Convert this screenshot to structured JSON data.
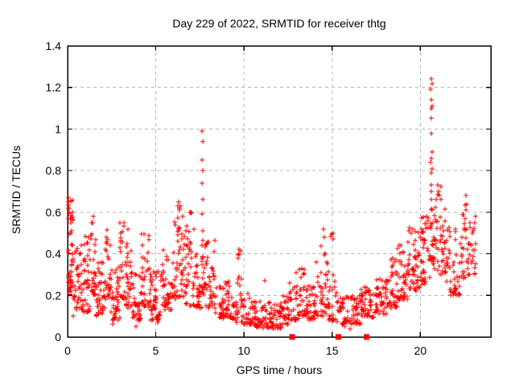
{
  "title": "Day 229 of 2022, SRMTID for receiver thtg",
  "colors": {
    "data": "#ff0000",
    "grid": "#b5b5b5",
    "border": "#000000",
    "background": "#ffffff",
    "text": "#000000"
  },
  "chart_data": {
    "type": "scatter",
    "title": "Day 229 of 2022, SRMTID for receiver thtg",
    "xlabel": "GPS time / hours",
    "ylabel": "SRMTID / TECUs",
    "xlim": [
      0,
      24
    ],
    "ylim": [
      0,
      1.4
    ],
    "x_tick_values": [
      0,
      5,
      10,
      15,
      20
    ],
    "x_tick_labels": [
      "0",
      "5",
      "10",
      "15",
      "20"
    ],
    "y_tick_values": [
      0,
      0.2,
      0.4,
      0.6,
      0.8,
      1.0,
      1.2,
      1.4
    ],
    "y_tick_labels": [
      "0",
      "0.2",
      "0.4",
      "0.6",
      "0.8",
      "1",
      "1.2",
      "1.4"
    ],
    "grid": true,
    "grid_style": "dashed",
    "legend": "none",
    "marker": "plus",
    "marker_color": "#ff0000",
    "series": [
      {
        "name": "SRMTID",
        "marker": "plus",
        "points_explicit": [
          [
            7.64,
            0.99
          ],
          [
            7.66,
            0.94
          ],
          [
            7.63,
            0.85
          ],
          [
            7.65,
            0.8
          ],
          [
            7.64,
            0.74
          ],
          [
            7.66,
            0.66
          ],
          [
            7.63,
            0.59
          ],
          [
            7.65,
            0.51
          ],
          [
            7.64,
            0.44
          ],
          [
            20.62,
            1.24
          ],
          [
            20.65,
            1.22
          ],
          [
            20.6,
            1.19
          ],
          [
            20.63,
            1.14
          ],
          [
            20.66,
            1.11
          ],
          [
            20.62,
            1.1
          ],
          [
            20.64,
            1.05
          ],
          [
            20.61,
            0.98
          ],
          [
            20.65,
            0.89
          ],
          [
            20.63,
            0.86
          ],
          [
            20.6,
            0.84
          ],
          [
            20.66,
            0.81
          ],
          [
            20.62,
            0.79
          ],
          [
            20.64,
            0.73
          ],
          [
            20.63,
            0.7
          ],
          [
            20.61,
            0.66
          ],
          [
            20.65,
            0.61
          ],
          [
            0.05,
            0.67
          ],
          [
            0.1,
            0.62
          ],
          [
            0.07,
            0.6
          ],
          [
            0.2,
            0.55
          ],
          [
            1.45,
            0.58
          ],
          [
            1.42,
            0.55
          ],
          [
            2.98,
            0.55
          ],
          [
            3.4,
            0.52
          ],
          [
            6.3,
            0.65
          ],
          [
            6.25,
            0.63
          ],
          [
            6.35,
            0.61
          ],
          [
            6.95,
            0.6
          ],
          [
            9.7,
            0.42
          ],
          [
            9.72,
            0.4
          ],
          [
            9.68,
            0.38
          ],
          [
            14.5,
            0.52
          ],
          [
            14.55,
            0.48
          ],
          [
            15.05,
            0.5
          ],
          [
            13.3,
            0.33
          ],
          [
            11.2,
            0.27
          ],
          [
            12.95,
            0.31
          ],
          [
            22.6,
            0.68
          ],
          [
            22.62,
            0.64
          ],
          [
            22.58,
            0.61
          ],
          [
            21.0,
            0.73
          ],
          [
            21.05,
            0.7
          ],
          [
            21.1,
            0.68
          ],
          [
            0.3,
            0.1
          ],
          [
            0.5,
            0.13
          ],
          [
            0.9,
            0.12
          ],
          [
            2.55,
            0.06
          ],
          [
            3.9,
            0.05
          ],
          [
            5.1,
            0.07
          ],
          [
            16.0,
            0.04
          ],
          [
            15.7,
            0.05
          ]
        ],
        "bands_note": "dense scatter approximated per time bin: [x_start,x_end,count,y_min,y_max,low_bias_exponent]",
        "bands": [
          [
            0.02,
            0.3,
            45,
            0.2,
            0.66,
            1.2
          ],
          [
            0.3,
            0.8,
            40,
            0.14,
            0.45,
            1.8
          ],
          [
            0.8,
            1.3,
            40,
            0.12,
            0.5,
            1.8
          ],
          [
            1.3,
            1.6,
            28,
            0.2,
            0.57,
            1.5
          ],
          [
            1.6,
            2.1,
            40,
            0.1,
            0.36,
            1.8
          ],
          [
            2.1,
            2.45,
            28,
            0.18,
            0.52,
            1.6
          ],
          [
            2.45,
            2.95,
            40,
            0.08,
            0.38,
            1.8
          ],
          [
            2.95,
            3.2,
            22,
            0.18,
            0.55,
            1.6
          ],
          [
            3.2,
            3.65,
            35,
            0.14,
            0.52,
            1.8
          ],
          [
            3.65,
            4.2,
            40,
            0.08,
            0.32,
            1.8
          ],
          [
            4.2,
            4.65,
            32,
            0.14,
            0.5,
            1.8
          ],
          [
            4.65,
            5.35,
            50,
            0.08,
            0.33,
            1.8
          ],
          [
            5.35,
            6.0,
            45,
            0.13,
            0.42,
            1.8
          ],
          [
            6.0,
            6.5,
            40,
            0.18,
            0.65,
            1.6
          ],
          [
            6.5,
            7.2,
            50,
            0.15,
            0.6,
            1.9
          ],
          [
            7.2,
            7.6,
            28,
            0.14,
            0.4,
            1.8
          ],
          [
            7.55,
            7.8,
            20,
            0.2,
            0.48,
            1.5
          ],
          [
            7.8,
            8.35,
            40,
            0.14,
            0.48,
            1.8
          ],
          [
            8.35,
            9.35,
            60,
            0.09,
            0.28,
            1.8
          ],
          [
            9.35,
            9.65,
            18,
            0.07,
            0.2,
            1.5
          ],
          [
            9.65,
            9.85,
            14,
            0.12,
            0.42,
            1.8
          ],
          [
            9.85,
            10.6,
            45,
            0.06,
            0.25,
            2.0
          ],
          [
            10.6,
            12.1,
            90,
            0.04,
            0.17,
            1.5
          ],
          [
            12.1,
            12.55,
            28,
            0.06,
            0.2,
            1.5
          ],
          [
            12.55,
            13.1,
            30,
            0.08,
            0.28,
            1.8
          ],
          [
            13.1,
            13.6,
            32,
            0.1,
            0.33,
            1.8
          ],
          [
            13.6,
            14.1,
            32,
            0.08,
            0.25,
            1.7
          ],
          [
            14.1,
            14.8,
            42,
            0.1,
            0.45,
            2.0
          ],
          [
            14.8,
            15.3,
            28,
            0.08,
            0.5,
            2.2
          ],
          [
            15.3,
            16.6,
            70,
            0.06,
            0.2,
            1.5
          ],
          [
            16.6,
            17.4,
            45,
            0.09,
            0.24,
            1.5
          ],
          [
            17.4,
            18.1,
            45,
            0.11,
            0.28,
            1.5
          ],
          [
            18.1,
            18.7,
            40,
            0.14,
            0.38,
            1.6
          ],
          [
            18.7,
            19.3,
            40,
            0.18,
            0.45,
            1.5
          ],
          [
            19.3,
            20.0,
            50,
            0.22,
            0.53,
            1.4
          ],
          [
            20.0,
            20.55,
            40,
            0.25,
            0.62,
            1.4
          ],
          [
            20.55,
            20.8,
            22,
            0.35,
            0.62,
            1.2
          ],
          [
            20.8,
            21.5,
            45,
            0.3,
            0.73,
            1.3
          ],
          [
            21.5,
            22.3,
            45,
            0.2,
            0.55,
            1.5
          ],
          [
            22.3,
            22.75,
            30,
            0.28,
            0.68,
            1.3
          ],
          [
            22.75,
            23.15,
            22,
            0.3,
            0.6,
            1.4
          ]
        ]
      },
      {
        "name": "axis flag markers",
        "marker": "filled-square",
        "x": [
          12.73,
          15.36,
          16.95
        ],
        "y": 0
      }
    ]
  }
}
